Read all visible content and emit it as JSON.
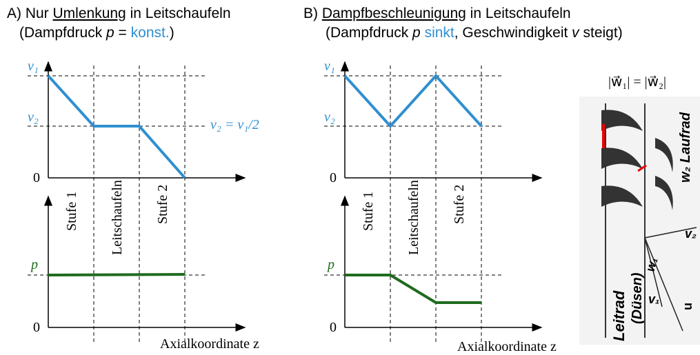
{
  "panel_a": {
    "title": [
      "A) Nur ",
      "Umlenkung",
      " in Leitschaufeln"
    ],
    "subtitle": [
      "(Dampfdruck ",
      "p",
      " = ",
      "konst.",
      ")"
    ],
    "v1": "v₁",
    "v2": "v₂",
    "zero_top": "0",
    "ratio": "v₂ = v₁/2",
    "p": "p",
    "zero_bottom": "0",
    "stage1": "Stufe 1",
    "guide": "Leitschaufeln",
    "stage2": "Stufe 2",
    "axis_label": "Axialkoordinate z"
  },
  "panel_b": {
    "title": [
      "B) ",
      "Dampfbeschleunigung",
      " in Leitschaufeln"
    ],
    "subtitle": [
      "(Dampfdruck ",
      "p",
      " ",
      "sinkt",
      ", Geschwindigkeit ",
      "v",
      " steigt)"
    ],
    "v1": "v₁",
    "v2": "v₂",
    "zero_top": "0",
    "p": "p",
    "zero_bottom": "0",
    "stage1": "Stufe 1",
    "guide": "Leitschaufeln",
    "stage2": "Stufe 2",
    "axis_label": "Axialkoordinate z"
  },
  "sketch": {
    "equation": "|w⃗₁| = |w⃗₂|",
    "leitrad": "Leitrad",
    "duesen": "(Düsen)",
    "laufrad": "w₂ Laufrad",
    "w1": "w₁",
    "v1": "v₁",
    "v2": "v₂",
    "u": "u"
  }
}
